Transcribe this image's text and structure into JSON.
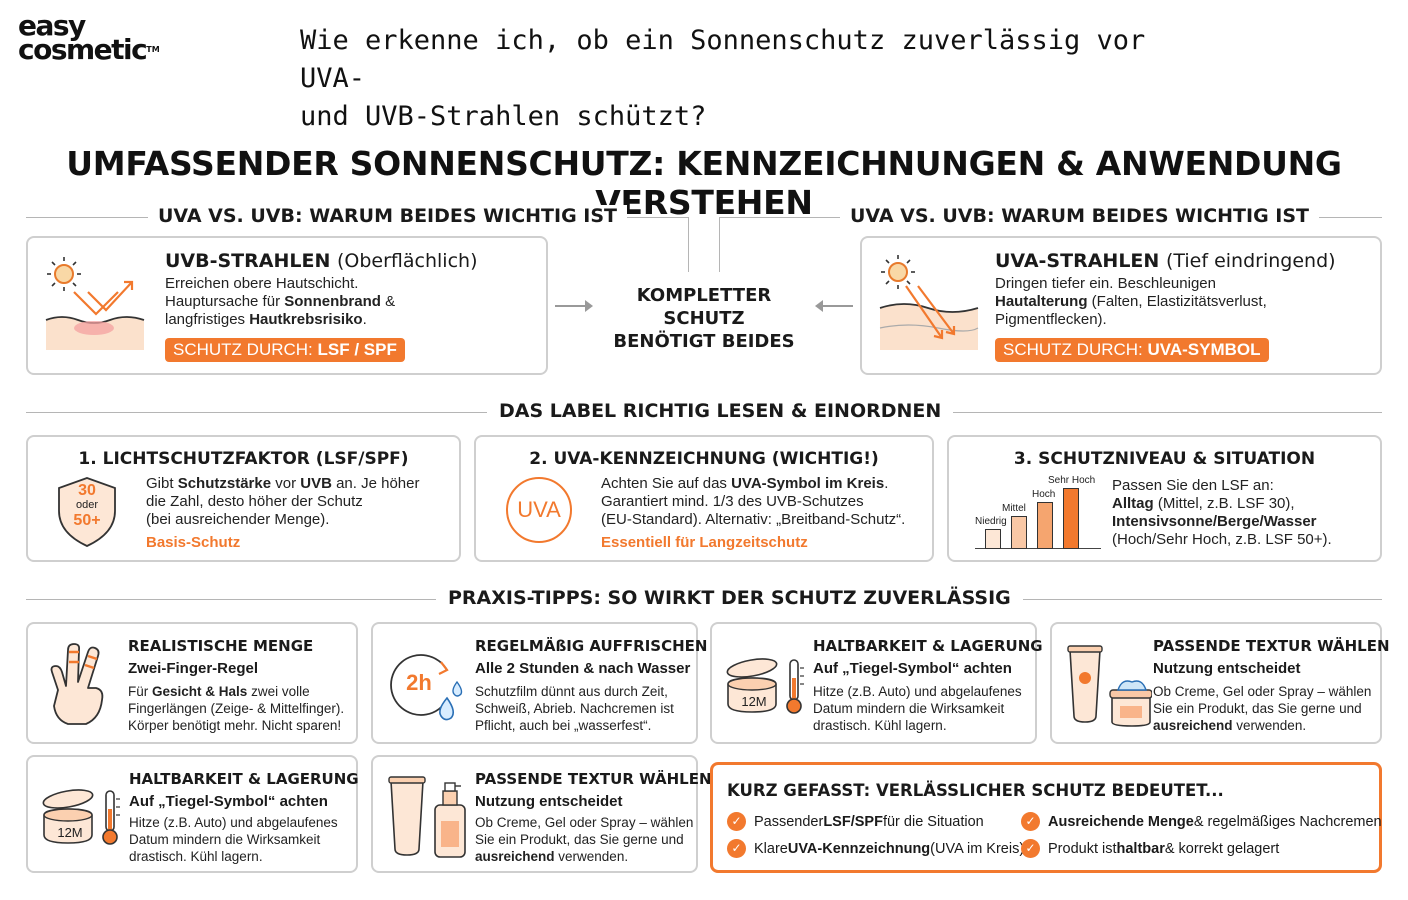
{
  "brand": {
    "line1": "easy",
    "line2": "cosmetic",
    "tm": "TM"
  },
  "question": {
    "line1": "Wie erkenne ich, ob ein Sonnenschutz zuverlässig vor UVA-",
    "line2": "und UVB-Strahlen schützt?"
  },
  "main_title": "UMFASSENDER SONNENSCHUTZ: KENNZEICHNUNGEN & ANWENDUNG VERSTEHEN",
  "uv_section": {
    "left_heading": "UVA VS. UVB: WARUM BEIDES WICHTIG IST",
    "right_heading": "UVA VS. UVB: WARUM BEIDES WICHTIG IST",
    "uvb": {
      "title": "UVB-STRAHLEN",
      "title_note": "(Oberflächlich)",
      "l1": "Erreichen obere Hautschicht.",
      "l2a": "Hauptursache für ",
      "l2b": "Sonnenbrand",
      "l2c": " &",
      "l3a": "langfristiges ",
      "l3b": "Hautkrebsrisiko",
      "l3c": ".",
      "pill_a": "SCHUTZ DURCH: ",
      "pill_b": "LSF / SPF"
    },
    "center_l1": "KOMPLETTER SCHUTZ",
    "center_l2": "BENÖTIGT BEIDES",
    "uva": {
      "title": "UVA-STRAHLEN",
      "title_note": "(Tief eindringend)",
      "l1": "Dringen tiefer ein. Beschleunigen",
      "l2a": "Hautalterung",
      "l2b": " (Falten, Elastizitätsverlust,",
      "l3": "Pigmentflecken).",
      "pill_a": "SCHUTZ DURCH: ",
      "pill_b": "UVA-SYMBOL"
    }
  },
  "label_section": {
    "heading": "DAS LABEL RICHTIG LESEN & EINORDNEN",
    "lsf": {
      "title": "1. LICHTSCHUTZFAKTOR (LSF/SPF)",
      "shield_top": "30",
      "shield_mid": "oder",
      "shield_bot": "50+",
      "l1a": "Gibt ",
      "l1b": "Schutzstärke",
      "l1c": " vor ",
      "l1d": "UVB",
      "l1e": " an. Je höher",
      "l2": "die Zahl, desto höher der Schutz",
      "l3": "(bei ausreichender Menge).",
      "accent": "Basis-Schutz"
    },
    "uva_mark": {
      "title": "2. UVA-KENNZEICHNUNG (WICHTIG!)",
      "badge": "UVA",
      "l1a": "Achten Sie auf das ",
      "l1b": "UVA-Symbol im Kreis",
      "l1c": ".",
      "l2": "Garantiert mind. 1/3 des UVB-Schutzes",
      "l3": "(EU-Standard). Alternativ: „Breitband-Schutz“.",
      "accent": "Essentiell für Langzeitschutz"
    },
    "level": {
      "title": "3. SCHUTZNIVEAU & SITUATION",
      "bars": [
        {
          "label": "Niedrig",
          "level": 1
        },
        {
          "label": "Mittel",
          "level": 2
        },
        {
          "label": "Hoch",
          "level": 3
        },
        {
          "label": "Sehr Hoch",
          "level": 4
        }
      ],
      "l1": "Passen Sie den LSF an:",
      "l2a": "Alltag",
      "l2b": " (Mittel, z.B. LSF 30),",
      "l3": "Intensivsonne/Berge/Wasser",
      "l4": "(Hoch/Sehr Hoch, z.B. LSF 50+)."
    }
  },
  "tips_section": {
    "heading": "PRAXIS-TIPPS: SO WIRKT DER SCHUTZ ZUVERLÄSSIG",
    "menge": {
      "title": "REALISTISCHE MENGE",
      "sub": "Zwei-Finger-Regel",
      "l1a": "Für ",
      "l1b": "Gesicht & Hals",
      "l1c": " zwei volle",
      "l2": "Fingerlängen (Zeige- & Mittelfinger).",
      "l3": "Körper benötigt mehr. Nicht sparen!"
    },
    "auffrischen": {
      "title": "REGELMÄßIG AUFFRISCHEN",
      "sub": "Alle 2 Stunden & nach Wasser",
      "clock_label": "2h",
      "l1": "Schutzfilm dünnt aus durch Zeit,",
      "l2": "Schweiß, Abrieb. Nachcremen ist",
      "l3": "Pflicht, auch bei „wasserfest“."
    },
    "haltbarkeit_1": {
      "title": "HALTBARKEIT & LAGERUNG",
      "sub": "Auf „Tiegel-Symbol“ achten",
      "jar_label": "12M",
      "l1": "Hitze (z.B. Auto) und abgelaufenes",
      "l2": "Datum mindern die Wirksamkeit",
      "l3": "drastisch. Kühl lagern."
    },
    "textur_1": {
      "title": "PASSENDE TEXTUR WÄHLEN",
      "sub": "Nutzung entscheidet",
      "l1": "Ob Creme, Gel oder Spray – wählen",
      "l2": "Sie ein Produkt, das Sie gerne und",
      "l3a": "ausreichend",
      "l3b": " verwenden."
    },
    "haltbarkeit_2": {
      "title": "HALTBARKEIT & LAGERUNG",
      "sub": "Auf „Tiegel-Symbol“ achten",
      "jar_label": "12M",
      "l1": "Hitze (z.B. Auto) und abgelaufenes",
      "l2": "Datum mindern die Wirksamkeit",
      "l3": "drastisch. Kühl lagern."
    },
    "textur_2": {
      "title": "PASSENDE TEXTUR WÄHLEN",
      "sub": "Nutzung entscheidet",
      "l1": "Ob Creme, Gel oder Spray – wählen",
      "l2": "Sie ein Produkt, das Sie gerne und",
      "l3a": "ausreichend",
      "l3b": " verwenden."
    }
  },
  "summary": {
    "title": "KURZ GEFASST: VERLÄSSLICHER SCHUTZ BEDEUTET...",
    "i1a": "Passender ",
    "i1b": "LSF/SPF",
    "i1c": " für die Situation",
    "i2a": "Klare ",
    "i2b": "UVA-Kennzeichnung",
    "i2c": " (UVA im Kreis)",
    "i3a": "Ausreichende Menge",
    "i3b": " & regelmäßiges Nachcremen",
    "i4a": "Produkt ist ",
    "i4b": "haltbar",
    "i4c": " & korrekt gelagert",
    "check_glyph": "✓"
  },
  "colors": {
    "accent": "#f2792e",
    "border": "#cfcfcf",
    "skin": "#fbe1cc"
  }
}
